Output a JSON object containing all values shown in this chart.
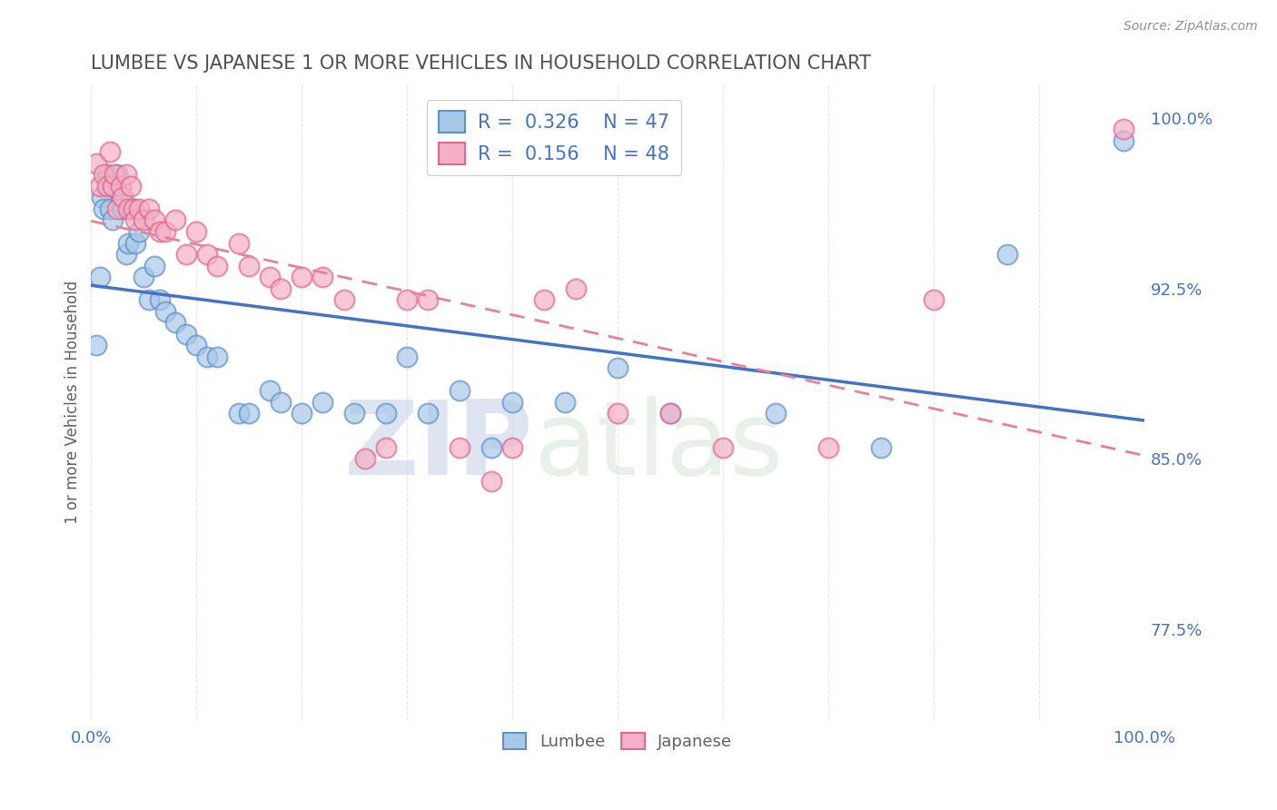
{
  "title": "LUMBEE VS JAPANESE 1 OR MORE VEHICLES IN HOUSEHOLD CORRELATION CHART",
  "source_text": "Source: ZipAtlas.com",
  "ylabel": "1 or more Vehicles in Household",
  "xlim": [
    0.0,
    1.0
  ],
  "ylim": [
    0.735,
    1.015
  ],
  "yticks": [
    0.775,
    0.85,
    0.925,
    1.0
  ],
  "ytick_labels": [
    "77.5%",
    "85.0%",
    "92.5%",
    "100.0%"
  ],
  "xticks": [
    0.0,
    0.1,
    0.2,
    0.3,
    0.4,
    0.5,
    0.6,
    0.7,
    0.8,
    0.9,
    1.0
  ],
  "xtick_labels": [
    "0.0%",
    "",
    "",
    "",
    "",
    "",
    "",
    "",
    "",
    "",
    "100.0%"
  ],
  "lumbee_color": "#a8c8e8",
  "japanese_color": "#f4b0c8",
  "lumbee_edge": "#6090c8",
  "japanese_edge": "#e06888",
  "watermark_zip": "ZIP",
  "watermark_atlas": "atlas",
  "watermark_color": "#ccd8ec",
  "lumbee_trend_color": "#4472c4",
  "japanese_trend_color": "#e88098",
  "lumbee_R": 0.326,
  "lumbee_N": 47,
  "japanese_R": 0.156,
  "japanese_N": 48,
  "lumbee_x": [
    0.005,
    0.008,
    0.01,
    0.012,
    0.015,
    0.018,
    0.02,
    0.022,
    0.025,
    0.028,
    0.03,
    0.033,
    0.035,
    0.038,
    0.04,
    0.042,
    0.045,
    0.05,
    0.055,
    0.06,
    0.065,
    0.07,
    0.08,
    0.09,
    0.1,
    0.11,
    0.12,
    0.14,
    0.15,
    0.17,
    0.18,
    0.2,
    0.22,
    0.25,
    0.28,
    0.3,
    0.32,
    0.35,
    0.38,
    0.4,
    0.45,
    0.5,
    0.55,
    0.65,
    0.75,
    0.87,
    0.98
  ],
  "lumbee_y": [
    0.9,
    0.93,
    0.965,
    0.96,
    0.975,
    0.96,
    0.955,
    0.97,
    0.975,
    0.965,
    0.96,
    0.94,
    0.945,
    0.96,
    0.96,
    0.945,
    0.95,
    0.93,
    0.92,
    0.935,
    0.92,
    0.915,
    0.91,
    0.905,
    0.9,
    0.895,
    0.895,
    0.87,
    0.87,
    0.88,
    0.875,
    0.87,
    0.875,
    0.87,
    0.87,
    0.895,
    0.87,
    0.88,
    0.855,
    0.875,
    0.875,
    0.89,
    0.87,
    0.87,
    0.855,
    0.94,
    0.99
  ],
  "japanese_x": [
    0.005,
    0.008,
    0.012,
    0.015,
    0.018,
    0.02,
    0.022,
    0.025,
    0.028,
    0.03,
    0.033,
    0.035,
    0.038,
    0.04,
    0.042,
    0.045,
    0.05,
    0.055,
    0.06,
    0.065,
    0.07,
    0.08,
    0.09,
    0.1,
    0.11,
    0.12,
    0.14,
    0.15,
    0.17,
    0.18,
    0.2,
    0.22,
    0.24,
    0.26,
    0.28,
    0.3,
    0.32,
    0.35,
    0.38,
    0.4,
    0.43,
    0.46,
    0.5,
    0.55,
    0.6,
    0.7,
    0.8,
    0.98
  ],
  "japanese_y": [
    0.98,
    0.97,
    0.975,
    0.97,
    0.985,
    0.97,
    0.975,
    0.96,
    0.97,
    0.965,
    0.975,
    0.96,
    0.97,
    0.96,
    0.955,
    0.96,
    0.955,
    0.96,
    0.955,
    0.95,
    0.95,
    0.955,
    0.94,
    0.95,
    0.94,
    0.935,
    0.945,
    0.935,
    0.93,
    0.925,
    0.93,
    0.93,
    0.92,
    0.85,
    0.855,
    0.92,
    0.92,
    0.855,
    0.84,
    0.855,
    0.92,
    0.925,
    0.87,
    0.87,
    0.855,
    0.855,
    0.92,
    0.995
  ],
  "background_color": "#ffffff",
  "grid_color": "#e0e0e0",
  "title_color": "#505050",
  "axis_label_color": "#606060",
  "tick_color": "#4472c4",
  "source_color": "#909090"
}
